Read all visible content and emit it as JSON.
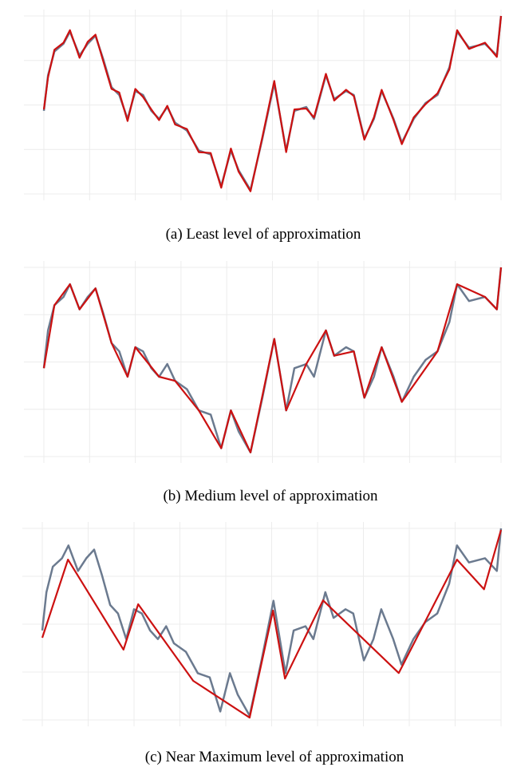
{
  "chart_data": [
    {
      "type": "line",
      "caption": "(a) Least level of approximation",
      "xlim": [
        0,
        100
      ],
      "ylim": [
        0,
        100
      ],
      "grid": true,
      "series": [
        {
          "color": "#6b7a8f",
          "x": [
            0,
            0.9,
            2.3,
            4.3,
            5.7,
            7.8,
            9.6,
            11.3,
            13.0,
            14.8,
            16.5,
            18.3,
            20.0,
            21.7,
            23.5,
            25.2,
            27.0,
            28.7,
            31.3,
            33.9,
            36.5,
            38.8,
            40.9,
            42.6,
            45.2,
            47.8,
            50.4,
            53.0,
            54.8,
            57.4,
            59.1,
            61.7,
            63.5,
            66.1,
            67.8,
            70.1,
            72.2,
            73.9,
            76.5,
            78.3,
            80.9,
            83.5,
            86.1,
            88.7,
            90.4,
            93.0,
            96.5,
            99.1,
            100
          ],
          "values": [
            46.7,
            66.7,
            80,
            84.4,
            91.1,
            77.8,
            84.4,
            88.9,
            75.6,
            60,
            55.6,
            42.2,
            57.8,
            55.6,
            46.7,
            42.2,
            48.9,
            40,
            35.6,
            24.4,
            22.2,
            4.4,
            24.4,
            13.3,
            2.2,
            31.1,
            62.2,
            24.4,
            46.7,
            48.9,
            42.2,
            66.7,
            53.3,
            57.8,
            55.6,
            31.1,
            42.2,
            57.8,
            42.2,
            28.9,
            42.2,
            51.1,
            55.6,
            71.1,
            91.1,
            82.2,
            84.4,
            77.8,
            100
          ]
        },
        {
          "color": "#cc1111",
          "x": [
            0,
            0.9,
            2.3,
            4.3,
            5.7,
            7.8,
            9.6,
            11.3,
            13.0,
            14.8,
            16.5,
            18.3,
            20.0,
            21.7,
            23.5,
            25.2,
            27.0,
            28.7,
            31.3,
            33.9,
            36.5,
            38.8,
            40.9,
            42.6,
            45.2,
            47.8,
            50.4,
            53.0,
            54.8,
            57.4,
            59.1,
            61.7,
            63.5,
            66.1,
            67.8,
            70.1,
            72.2,
            73.9,
            76.5,
            78.3,
            80.9,
            83.5,
            86.1,
            88.7,
            90.4,
            93.0,
            96.5,
            99.1,
            100
          ],
          "values": [
            47.5,
            65.5,
            81,
            85,
            92,
            76.5,
            85.5,
            89.5,
            74.5,
            59,
            57,
            41,
            59,
            54.5,
            47.5,
            41.5,
            49.5,
            39,
            36.5,
            23.5,
            23,
            3.5,
            25.5,
            12.5,
            1.5,
            32,
            63.5,
            23.5,
            47.5,
            48,
            43,
            67.5,
            52.5,
            58.5,
            55,
            30.5,
            43,
            58.5,
            41.5,
            28,
            43,
            50.5,
            56.5,
            70,
            92,
            81.5,
            85,
            77,
            100
          ]
        }
      ]
    },
    {
      "type": "line",
      "caption": "(b) Medium level of approximation",
      "xlim": [
        0,
        100
      ],
      "ylim": [
        0,
        100
      ],
      "grid": true,
      "series": [
        {
          "color": "#6b7a8f",
          "x": [
            0,
            0.9,
            2.3,
            4.3,
            5.7,
            7.8,
            9.6,
            11.3,
            13.0,
            14.8,
            16.5,
            18.3,
            20.0,
            21.7,
            23.5,
            25.2,
            27.0,
            28.7,
            31.3,
            33.9,
            36.5,
            38.8,
            40.9,
            42.6,
            45.2,
            47.8,
            50.4,
            53.0,
            54.8,
            57.4,
            59.1,
            61.7,
            63.5,
            66.1,
            67.8,
            70.1,
            72.2,
            73.9,
            76.5,
            78.3,
            80.9,
            83.5,
            86.1,
            88.7,
            90.4,
            93.0,
            96.5,
            99.1,
            100
          ],
          "values": [
            46.7,
            66.7,
            80,
            84.4,
            91.1,
            77.8,
            84.4,
            88.9,
            75.6,
            60,
            55.6,
            42.2,
            57.8,
            55.6,
            46.7,
            42.2,
            48.9,
            40,
            35.6,
            24.4,
            22.2,
            4.4,
            24.4,
            13.3,
            2.2,
            31.1,
            62.2,
            24.4,
            46.7,
            48.9,
            42.2,
            66.7,
            53.3,
            57.8,
            55.6,
            31.1,
            42.2,
            57.8,
            42.2,
            28.9,
            42.2,
            51.1,
            55.6,
            71.1,
            91.1,
            82.2,
            84.4,
            77.8,
            100
          ]
        },
        {
          "color": "#cc1111",
          "x": [
            0,
            2.3,
            5.7,
            7.8,
            11.3,
            14.8,
            18.3,
            20.0,
            25.2,
            28.7,
            33.9,
            38.8,
            40.9,
            45.2,
            50.4,
            53.0,
            57.4,
            61.7,
            63.5,
            67.8,
            70.1,
            73.9,
            78.3,
            86.1,
            90.4,
            96.5,
            99.1,
            100
          ],
          "values": [
            46.7,
            80,
            91.1,
            77.8,
            88.9,
            60,
            42.2,
            57.8,
            42.2,
            40,
            24.4,
            4.4,
            24.4,
            2.2,
            62.2,
            24.4,
            48.9,
            66.7,
            53.3,
            55.6,
            31.1,
            57.8,
            28.9,
            55.6,
            91.1,
            84.4,
            77.8,
            100
          ]
        }
      ]
    },
    {
      "type": "line",
      "caption": "(c) Near Maximum level of approximation",
      "xlim": [
        0,
        100
      ],
      "ylim": [
        0,
        100
      ],
      "grid": true,
      "series": [
        {
          "color": "#6b7a8f",
          "x": [
            0,
            0.9,
            2.3,
            4.3,
            5.7,
            7.8,
            9.6,
            11.3,
            13.0,
            14.8,
            16.5,
            18.3,
            20.0,
            21.7,
            23.5,
            25.2,
            27.0,
            28.7,
            31.3,
            33.9,
            36.5,
            38.8,
            40.9,
            42.6,
            45.2,
            47.8,
            50.4,
            53.0,
            54.8,
            57.4,
            59.1,
            61.7,
            63.5,
            66.1,
            67.8,
            70.1,
            72.2,
            73.9,
            76.5,
            78.3,
            80.9,
            83.5,
            86.1,
            88.7,
            90.4,
            93.0,
            96.5,
            99.1,
            100
          ],
          "values": [
            46.7,
            66.7,
            80,
            84.4,
            91.1,
            77.8,
            84.4,
            88.9,
            75.6,
            60,
            55.6,
            42.2,
            57.8,
            55.6,
            46.7,
            42.2,
            48.9,
            40,
            35.6,
            24.4,
            22.2,
            4.4,
            24.4,
            13.3,
            2.2,
            31.1,
            62.2,
            24.4,
            46.7,
            48.9,
            42.2,
            66.7,
            53.3,
            57.8,
            55.6,
            31.1,
            42.2,
            57.8,
            42.2,
            28.9,
            42.2,
            51.1,
            55.6,
            71.1,
            91.1,
            82.2,
            84.4,
            77.8,
            100
          ]
        },
        {
          "color": "#cc1111",
          "x": [
            0,
            5.6,
            17.7,
            20.9,
            32.9,
            45.2,
            50.3,
            52.9,
            61.2,
            77.7,
            90.4,
            96.3,
            100
          ],
          "values": [
            42.9,
            83.7,
            36.7,
            60.4,
            20.4,
            1.2,
            57.1,
            21.6,
            62.4,
            24.5,
            83.7,
            68.2,
            99.2
          ]
        }
      ]
    }
  ]
}
